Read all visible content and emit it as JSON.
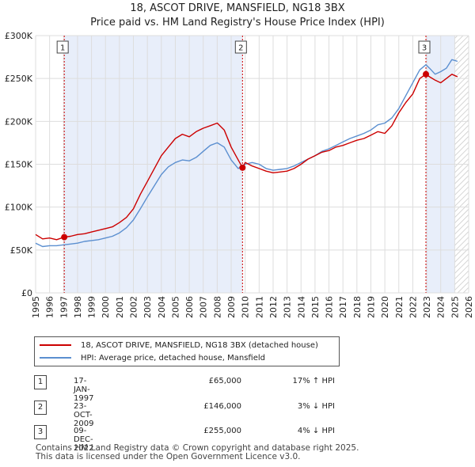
{
  "header": {
    "title_line1": "18, ASCOT DRIVE, MANSFIELD, NG18 3BX",
    "title_line2": "Price paid vs. HM Land Registry's House Price Index (HPI)"
  },
  "colors": {
    "property_line": "#cc0000",
    "hpi_line": "#5b8fd0",
    "shade": "#e8eefa",
    "hatch": "#c8c8c8",
    "grid": "#dddddd",
    "marker": "#cc0000"
  },
  "chart_data": {
    "type": "line",
    "title": "18, ASCOT DRIVE, MANSFIELD, NG18 3BX — Price paid vs. HM Land Registry's House Price Index (HPI)",
    "xlim": [
      1995,
      2026
    ],
    "ylim": [
      0,
      300000
    ],
    "y_ticks": [
      0,
      50000,
      100000,
      150000,
      200000,
      250000,
      300000
    ],
    "y_tick_labels": [
      "£0",
      "£50K",
      "£100K",
      "£150K",
      "£200K",
      "£250K",
      "£300K"
    ],
    "x_ticks": [
      1995,
      1996,
      1997,
      1998,
      1999,
      2000,
      2001,
      2002,
      2003,
      2004,
      2005,
      2006,
      2007,
      2008,
      2009,
      2010,
      2011,
      2012,
      2013,
      2014,
      2015,
      2016,
      2017,
      2018,
      2019,
      2020,
      2021,
      2022,
      2023,
      2024,
      2025,
      2026
    ],
    "x_tick_labels": [
      "1995",
      "1996",
      "1997",
      "1998",
      "1999",
      "2000",
      "2001",
      "2002",
      "2003",
      "2004",
      "2005",
      "2006",
      "2007",
      "2008",
      "2009",
      "2010",
      "2011",
      "2012",
      "2013",
      "2014",
      "2015",
      "2016",
      "2017",
      "2018",
      "2019",
      "2020",
      "2021",
      "2022",
      "2023",
      "2024",
      "2025",
      "2026"
    ],
    "shaded_periods": [
      [
        1997.05,
        2009.81
      ],
      [
        2022.94,
        2025.0
      ]
    ],
    "hatched_period": [
      2025.0,
      2026
    ],
    "series": [
      {
        "name": "18, ASCOT DRIVE, MANSFIELD, NG18 3BX (detached house)",
        "color": "#cc0000",
        "x": [
          1995.0,
          1995.5,
          1996.0,
          1996.5,
          1997.05,
          1997.5,
          1998.0,
          1998.5,
          1999.0,
          1999.5,
          2000.0,
          2000.5,
          2001.0,
          2001.5,
          2002.0,
          2002.5,
          2003.0,
          2003.5,
          2004.0,
          2004.5,
          2005.0,
          2005.5,
          2006.0,
          2006.5,
          2007.0,
          2007.5,
          2008.0,
          2008.5,
          2009.0,
          2009.4,
          2009.81,
          2010.0,
          2010.5,
          2011.0,
          2011.5,
          2012.0,
          2012.5,
          2013.0,
          2013.5,
          2014.0,
          2014.5,
          2015.0,
          2015.5,
          2016.0,
          2016.5,
          2017.0,
          2017.5,
          2018.0,
          2018.5,
          2019.0,
          2019.5,
          2020.0,
          2020.5,
          2021.0,
          2021.5,
          2022.0,
          2022.5,
          2022.94,
          2023.2,
          2023.6,
          2024.0,
          2024.4,
          2024.8,
          2025.2
        ],
        "values": [
          68000,
          63000,
          64000,
          62000,
          65000,
          66000,
          68000,
          69000,
          71000,
          73000,
          75000,
          77000,
          82000,
          88000,
          98000,
          115000,
          130000,
          145000,
          160000,
          170000,
          180000,
          185000,
          182000,
          188000,
          192000,
          195000,
          198000,
          190000,
          170000,
          158000,
          146000,
          152000,
          148000,
          145000,
          142000,
          140000,
          141000,
          142000,
          145000,
          150000,
          156000,
          160000,
          164000,
          166000,
          170000,
          172000,
          175000,
          178000,
          180000,
          184000,
          188000,
          186000,
          195000,
          210000,
          222000,
          232000,
          250000,
          255000,
          252000,
          248000,
          245000,
          250000,
          255000,
          252000
        ]
      },
      {
        "name": "HPI: Average price, detached house, Mansfield",
        "color": "#5b8fd0",
        "x": [
          1995.0,
          1995.5,
          1996.0,
          1996.5,
          1997.0,
          1997.5,
          1998.0,
          1998.5,
          1999.0,
          1999.5,
          2000.0,
          2000.5,
          2001.0,
          2001.5,
          2002.0,
          2002.5,
          2003.0,
          2003.5,
          2004.0,
          2004.5,
          2005.0,
          2005.5,
          2006.0,
          2006.5,
          2007.0,
          2007.5,
          2008.0,
          2008.5,
          2009.0,
          2009.5,
          2010.0,
          2010.5,
          2011.0,
          2011.5,
          2012.0,
          2012.5,
          2013.0,
          2013.5,
          2014.0,
          2014.5,
          2015.0,
          2015.5,
          2016.0,
          2016.5,
          2017.0,
          2017.5,
          2018.0,
          2018.5,
          2019.0,
          2019.5,
          2020.0,
          2020.5,
          2021.0,
          2021.5,
          2022.0,
          2022.5,
          2022.94,
          2023.2,
          2023.6,
          2024.0,
          2024.4,
          2024.8,
          2025.2
        ],
        "values": [
          58000,
          54000,
          55000,
          55000,
          56000,
          57000,
          58000,
          60000,
          61000,
          62000,
          64000,
          66000,
          70000,
          76000,
          85000,
          98000,
          112000,
          125000,
          138000,
          147000,
          152000,
          155000,
          154000,
          158000,
          165000,
          172000,
          175000,
          170000,
          155000,
          145000,
          150000,
          152000,
          150000,
          145000,
          143000,
          144000,
          145000,
          148000,
          152000,
          156000,
          160000,
          165000,
          168000,
          172000,
          176000,
          180000,
          183000,
          186000,
          190000,
          196000,
          198000,
          204000,
          215000,
          230000,
          245000,
          260000,
          266000,
          262000,
          255000,
          258000,
          262000,
          272000,
          270000
        ]
      }
    ],
    "sales": [
      {
        "label": "1",
        "x": 1997.05,
        "value": 65000
      },
      {
        "label": "2",
        "x": 2009.81,
        "value": 146000
      },
      {
        "label": "3",
        "x": 2022.94,
        "value": 255000
      }
    ]
  },
  "legend": {
    "property_label": "18, ASCOT DRIVE, MANSFIELD, NG18 3BX (detached house)",
    "hpi_label": "HPI: Average price, detached house, Mansfield"
  },
  "sales_table": [
    {
      "num": "1",
      "date": "17-JAN-1997",
      "price": "£65,000",
      "hpi": "17% ↑ HPI"
    },
    {
      "num": "2",
      "date": "23-OCT-2009",
      "price": "£146,000",
      "hpi": "3% ↓ HPI"
    },
    {
      "num": "3",
      "date": "09-DEC-2022",
      "price": "£255,000",
      "hpi": "4% ↓ HPI"
    }
  ],
  "footer": {
    "line1": "Contains HM Land Registry data © Crown copyright and database right 2025.",
    "line2": "This data is licensed under the Open Government Licence v3.0."
  }
}
